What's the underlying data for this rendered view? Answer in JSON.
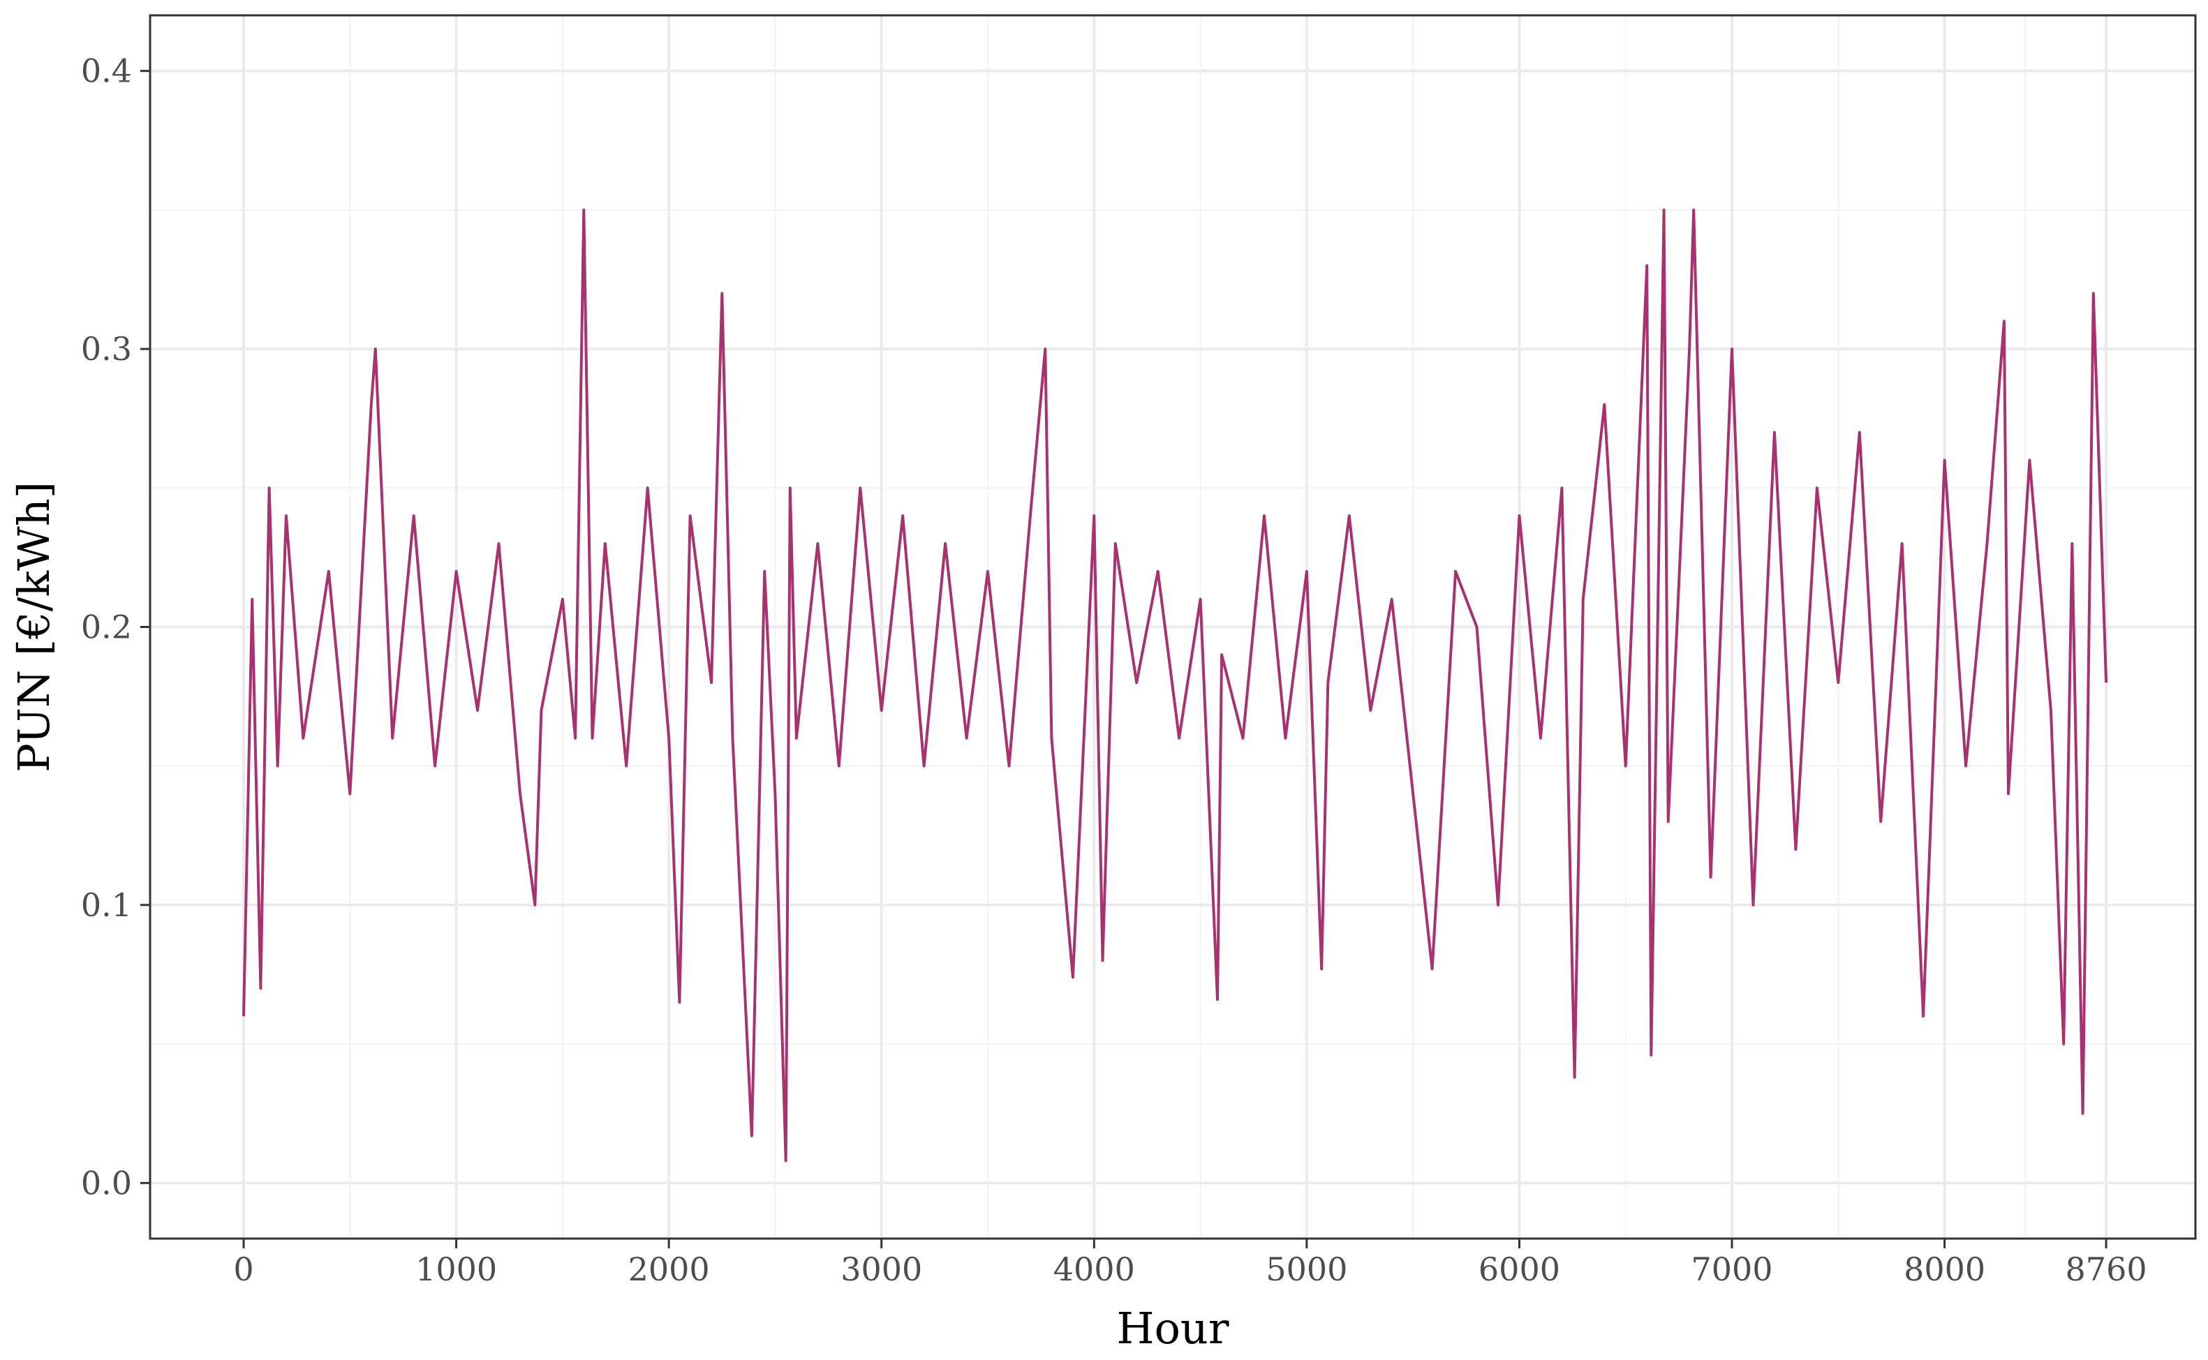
{
  "chart_data": {
    "type": "line",
    "title": "",
    "xlabel": "Hour",
    "ylabel": "PUN [€/kWh]",
    "xlim": [
      -440,
      9180
    ],
    "ylim": [
      -0.02,
      0.42
    ],
    "x_ticks": [
      0,
      1000,
      2000,
      3000,
      4000,
      5000,
      6000,
      7000,
      8000,
      8760
    ],
    "x_tick_labels": [
      "0",
      "1000",
      "2000",
      "3000",
      "4000",
      "5000",
      "6000",
      "7000",
      "8000",
      "8760"
    ],
    "y_ticks": [
      0.0,
      0.1,
      0.2,
      0.3,
      0.4
    ],
    "y_tick_labels": [
      "0.0",
      "0.1",
      "0.2",
      "0.3",
      "0.4"
    ],
    "grid": true,
    "line_color": "#A8326F",
    "series": [
      {
        "x": [
          0,
          40,
          80,
          120,
          160,
          200,
          280,
          400,
          500,
          600,
          620,
          700,
          800,
          900,
          1000,
          1100,
          1200,
          1300,
          1370,
          1400,
          1500,
          1560,
          1600,
          1640,
          1700,
          1800,
          1900,
          2000,
          2050,
          2100,
          2200,
          2250,
          2300,
          2390,
          2450,
          2500,
          2550,
          2570,
          2600,
          2700,
          2800,
          2900,
          3000,
          3100,
          3200,
          3300,
          3400,
          3500,
          3600,
          3700,
          3770,
          3800,
          3900,
          4000,
          4040,
          4100,
          4200,
          4300,
          4400,
          4500,
          4580,
          4600,
          4700,
          4800,
          4900,
          5000,
          5070,
          5100,
          5200,
          5300,
          5400,
          5590,
          5700,
          5800,
          5900,
          6000,
          6100,
          6200,
          6260,
          6300,
          6400,
          6500,
          6600,
          6620,
          6680,
          6700,
          6800,
          6820,
          6900,
          7000,
          7100,
          7200,
          7300,
          7400,
          7500,
          7600,
          7700,
          7800,
          7900,
          8000,
          8100,
          8200,
          8280,
          8300,
          8400,
          8500,
          8560,
          8600,
          8650,
          8700,
          8760
        ],
        "values": [
          0.06,
          0.21,
          0.07,
          0.25,
          0.15,
          0.24,
          0.16,
          0.22,
          0.14,
          0.28,
          0.3,
          0.16,
          0.24,
          0.15,
          0.22,
          0.17,
          0.23,
          0.14,
          0.1,
          0.17,
          0.21,
          0.16,
          0.35,
          0.16,
          0.23,
          0.15,
          0.25,
          0.16,
          0.065,
          0.24,
          0.18,
          0.32,
          0.16,
          0.017,
          0.22,
          0.14,
          0.008,
          0.25,
          0.16,
          0.23,
          0.15,
          0.25,
          0.17,
          0.24,
          0.15,
          0.23,
          0.16,
          0.22,
          0.15,
          0.24,
          0.3,
          0.16,
          0.074,
          0.24,
          0.08,
          0.23,
          0.18,
          0.22,
          0.16,
          0.21,
          0.066,
          0.19,
          0.16,
          0.24,
          0.16,
          0.22,
          0.077,
          0.18,
          0.24,
          0.17,
          0.21,
          0.077,
          0.22,
          0.2,
          0.1,
          0.24,
          0.16,
          0.25,
          0.038,
          0.21,
          0.28,
          0.15,
          0.33,
          0.046,
          0.35,
          0.13,
          0.3,
          0.35,
          0.11,
          0.3,
          0.1,
          0.27,
          0.12,
          0.25,
          0.18,
          0.27,
          0.13,
          0.23,
          0.06,
          0.26,
          0.15,
          0.23,
          0.31,
          0.14,
          0.26,
          0.17,
          0.05,
          0.23,
          0.025,
          0.32,
          0.18
        ]
      }
    ]
  }
}
